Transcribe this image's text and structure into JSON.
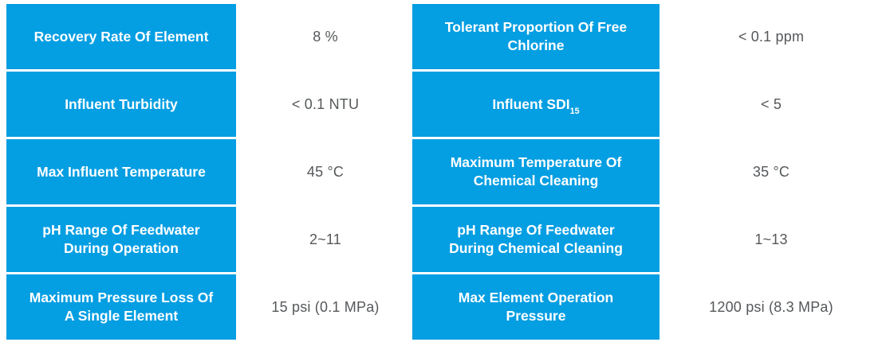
{
  "table": {
    "description": "Membrane element operating limits specification table",
    "accent_color": "#049EE2",
    "alt_row_color": "#E5E5E4",
    "value_text_color": "#55585A",
    "label_text_color": "#FFFFFF",
    "rows": [
      {
        "label1": "Recovery Rate Of Element",
        "value1": "8 %",
        "label2": "Tolerant Proportion Of Free Chlorine",
        "value2": "< 0.1 ppm"
      },
      {
        "label1": "Influent Turbidity",
        "value1": "< 0.1 NTU",
        "label2": "Influent SDI",
        "label2_sub": "15",
        "value2": "< 5"
      },
      {
        "label1": "Max Influent Temperature",
        "value1": "45 °C",
        "label2": "Maximum Temperature Of Chemical Cleaning",
        "value2": "35 °C"
      },
      {
        "label1": "pH Range Of Feedwater During Operation",
        "value1": "2~11",
        "label2": "pH Range Of Feedwater During Chemical Cleaning",
        "value2": "1~13"
      },
      {
        "label1": "Maximum Pressure Loss Of A Single Element",
        "value1": "15 psi (0.1 MPa)",
        "label2": "Max Element Operation Pressure",
        "value2": "1200 psi (8.3 MPa)"
      }
    ]
  }
}
